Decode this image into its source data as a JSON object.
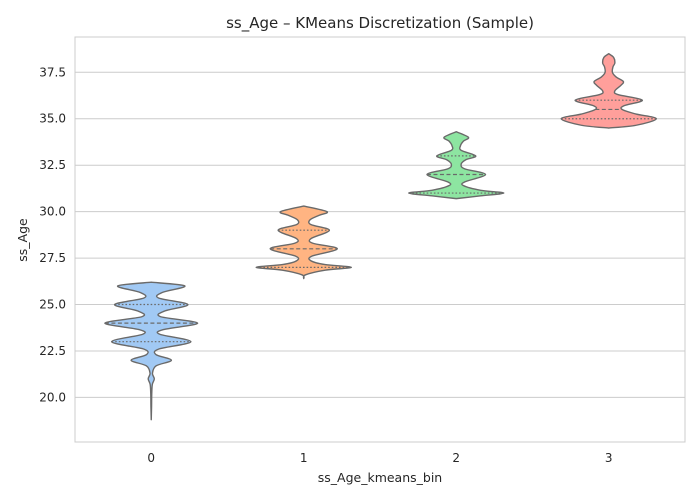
{
  "chart_data": {
    "type": "violin",
    "title": "ss_Age – KMeans Discretization (Sample)",
    "xlabel": "ss_Age_kmeans_bin",
    "ylabel": "ss_Age",
    "categories": [
      "0",
      "1",
      "2",
      "3"
    ],
    "ylim": [
      17.6,
      39.4
    ],
    "yticks": [
      20.0,
      22.5,
      25.0,
      27.5,
      30.0,
      32.5,
      35.0,
      37.5
    ],
    "ytick_labels": [
      "20.0",
      "22.5",
      "25.0",
      "27.5",
      "30.0",
      "32.5",
      "35.0",
      "37.5"
    ],
    "grid": "horizontal",
    "series": [
      {
        "category": "0",
        "color": "#a1c9f4",
        "range": [
          18.8,
          26.2
        ],
        "quartiles": [
          23.0,
          24.0,
          25.0
        ],
        "profile": [
          [
            18.8,
            0.0
          ],
          [
            19.5,
            0.005
          ],
          [
            20.2,
            0.008
          ],
          [
            20.7,
            0.018
          ],
          [
            21.0,
            0.05
          ],
          [
            21.3,
            0.02
          ],
          [
            21.7,
            0.08
          ],
          [
            22.0,
            0.33
          ],
          [
            22.3,
            0.08
          ],
          [
            22.6,
            0.12
          ],
          [
            23.0,
            0.65
          ],
          [
            23.4,
            0.14
          ],
          [
            23.65,
            0.2
          ],
          [
            24.0,
            0.76
          ],
          [
            24.35,
            0.15
          ],
          [
            24.65,
            0.22
          ],
          [
            25.0,
            0.6
          ],
          [
            25.35,
            0.12
          ],
          [
            25.65,
            0.18
          ],
          [
            26.0,
            0.55
          ],
          [
            26.2,
            0.0
          ]
        ]
      },
      {
        "category": "1",
        "color": "#ffb482",
        "range": [
          26.4,
          30.3
        ],
        "quartiles": [
          27.0,
          28.0,
          29.0
        ],
        "profile": [
          [
            26.4,
            0.0
          ],
          [
            26.6,
            0.03
          ],
          [
            26.85,
            0.35
          ],
          [
            27.0,
            0.78
          ],
          [
            27.15,
            0.35
          ],
          [
            27.35,
            0.12
          ],
          [
            27.6,
            0.13
          ],
          [
            28.0,
            0.55
          ],
          [
            28.3,
            0.15
          ],
          [
            28.55,
            0.12
          ],
          [
            29.0,
            0.42
          ],
          [
            29.3,
            0.12
          ],
          [
            29.55,
            0.1
          ],
          [
            29.8,
            0.25
          ],
          [
            30.0,
            0.38
          ],
          [
            30.3,
            0.0
          ]
        ]
      },
      {
        "category": "2",
        "color": "#8de5a1",
        "range": [
          30.7,
          34.3
        ],
        "quartiles": [
          31.0,
          32.0,
          33.0
        ],
        "profile": [
          [
            30.7,
            0.0
          ],
          [
            30.85,
            0.4
          ],
          [
            31.0,
            0.78
          ],
          [
            31.15,
            0.4
          ],
          [
            31.4,
            0.12
          ],
          [
            31.6,
            0.14
          ],
          [
            32.0,
            0.48
          ],
          [
            32.3,
            0.14
          ],
          [
            32.55,
            0.08
          ],
          [
            32.8,
            0.16
          ],
          [
            33.0,
            0.32
          ],
          [
            33.3,
            0.08
          ],
          [
            33.55,
            0.07
          ],
          [
            33.8,
            0.12
          ],
          [
            34.0,
            0.2
          ],
          [
            34.3,
            0.0
          ]
        ]
      },
      {
        "category": "3",
        "color": "#ff9f9b",
        "range": [
          34.5,
          38.5
        ],
        "quartiles": [
          35.0,
          35.5,
          36.0
        ],
        "profile": [
          [
            34.5,
            0.0
          ],
          [
            34.65,
            0.45
          ],
          [
            35.0,
            0.78
          ],
          [
            35.25,
            0.45
          ],
          [
            35.5,
            0.22
          ],
          [
            35.7,
            0.25
          ],
          [
            36.0,
            0.55
          ],
          [
            36.3,
            0.15
          ],
          [
            36.5,
            0.1
          ],
          [
            36.8,
            0.2
          ],
          [
            37.0,
            0.24
          ],
          [
            37.25,
            0.12
          ],
          [
            37.5,
            0.06
          ],
          [
            37.8,
            0.07
          ],
          [
            38.0,
            0.1
          ],
          [
            38.3,
            0.08
          ],
          [
            38.5,
            0.0
          ]
        ]
      }
    ]
  }
}
